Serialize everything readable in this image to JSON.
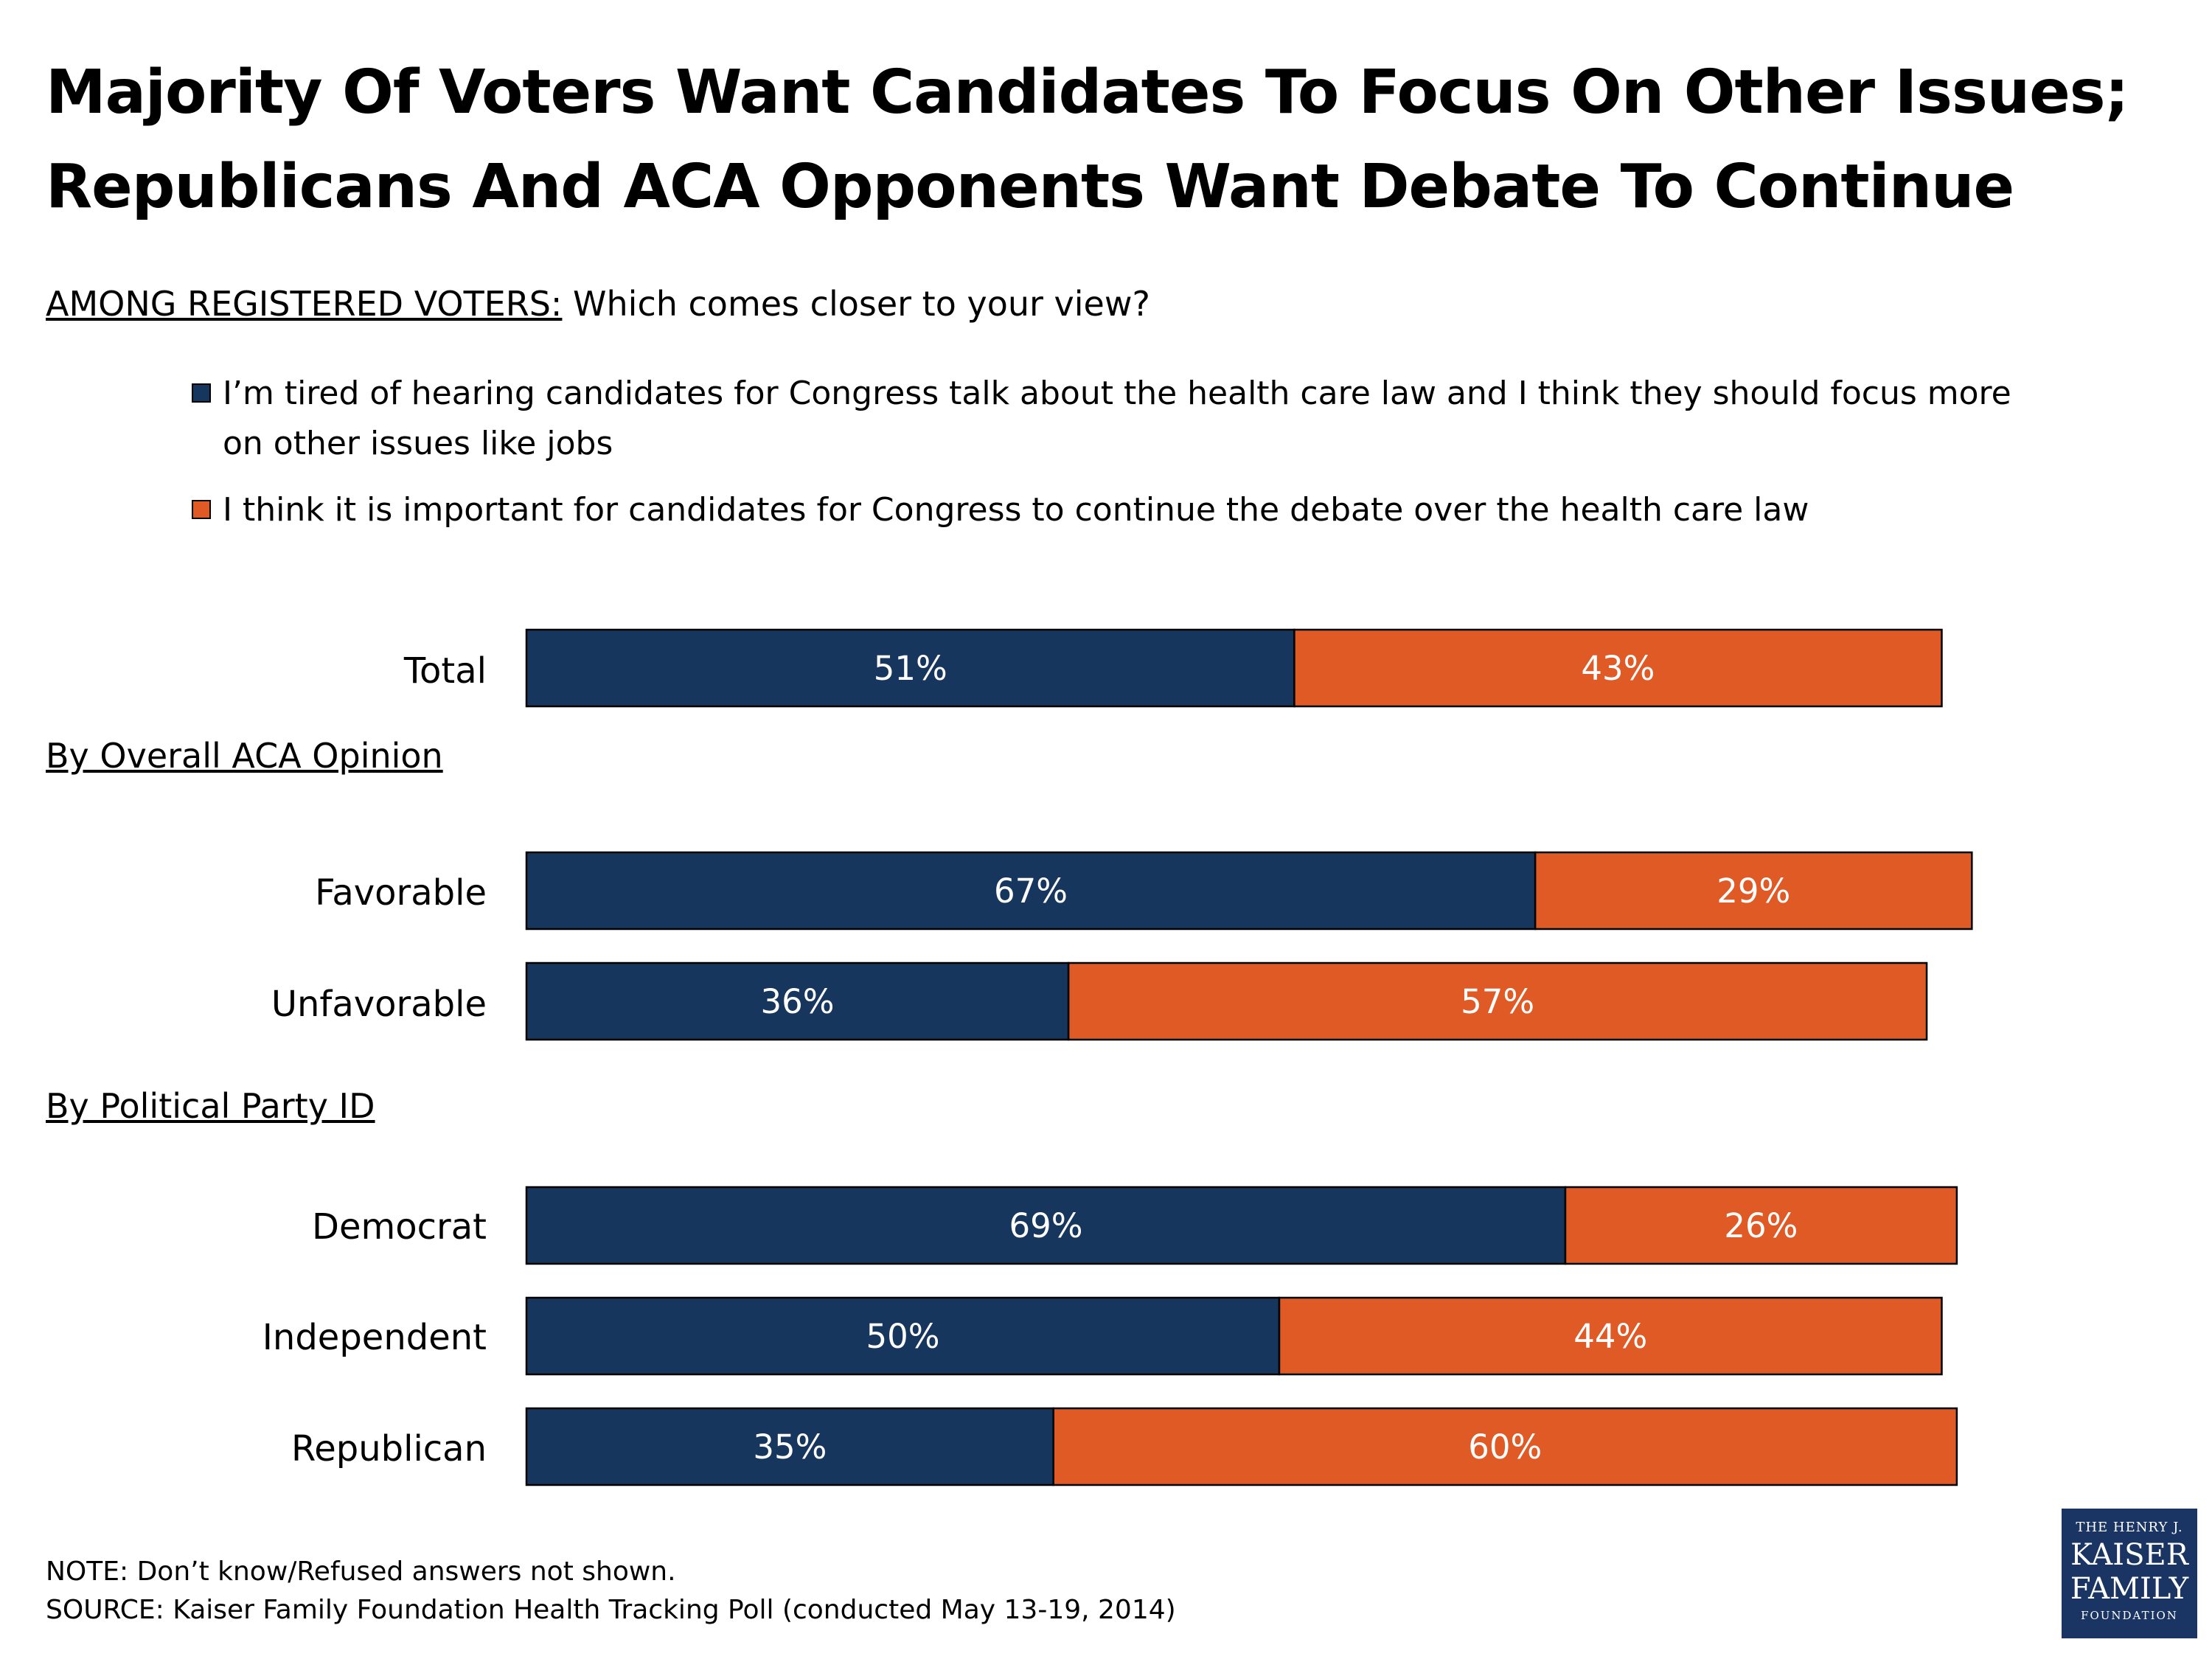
{
  "title_line1": "Majority Of Voters Want Candidates To Focus On Other Issues;",
  "title_line2": "Republicans And ACA Opponents Want Debate To Continue",
  "subtitle_prefix": "AMONG REGISTERED VOTERS:",
  "subtitle_question": "Which comes closer to your view?",
  "legend": [
    {
      "label": "I’m tired of hearing candidates for Congress talk about the health care law and I think they should focus more on other issues like jobs",
      "color": "#17365d"
    },
    {
      "label": "I think it is important for candidates for Congress to continue the debate over the health care law",
      "color": "#e05a26"
    }
  ],
  "sections": [
    "By Overall ACA Opinion",
    "By Political Party ID"
  ],
  "colors": {
    "series1": "#17365d",
    "series2": "#e05a26",
    "bar_text": "#ffffff"
  },
  "chart_data": {
    "type": "bar",
    "orientation": "horizontal",
    "stacked": true,
    "categories": [
      "Total",
      "Favorable",
      "Unfavorable",
      "Democrat",
      "Independent",
      "Republican"
    ],
    "series": [
      {
        "values": [
          51,
          67,
          36,
          69,
          50,
          35
        ],
        "color": "#17365d"
      },
      {
        "values": [
          43,
          29,
          57,
          26,
          44,
          60
        ],
        "color": "#e05a26"
      }
    ],
    "value_suffix": "%",
    "xlim": [
      0,
      100
    ],
    "legend_position": "top",
    "grid": false
  },
  "note": "NOTE: Don’t know/Refused answers not shown.",
  "source": "SOURCE: Kaiser Family Foundation Health Tracking Poll (conducted May 13-19, 2014)",
  "logo": {
    "line1": "THE HENRY J.",
    "line2": "KAISER",
    "line3": "FAMILY",
    "line4": "FOUNDATION"
  }
}
